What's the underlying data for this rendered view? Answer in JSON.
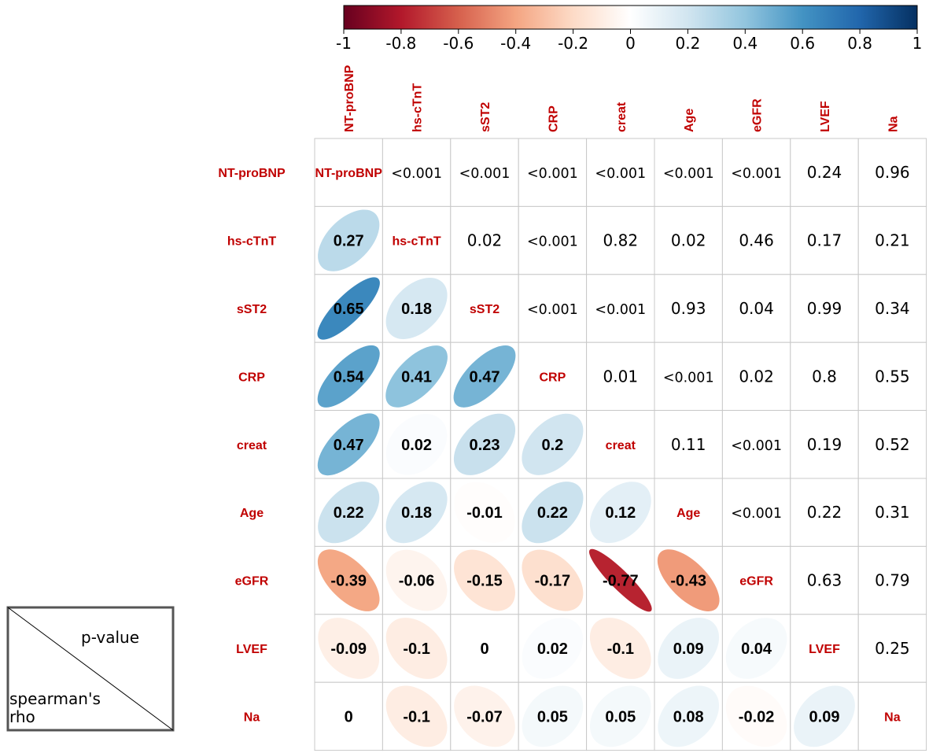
{
  "chart_data": {
    "type": "heatmap",
    "variables": [
      "NT-proBNP",
      "hs-cTnT",
      "sST2",
      "CRP",
      "creat",
      "Age",
      "eGFR",
      "LVEF",
      "Na"
    ],
    "upper_triangle_label": "p-value",
    "lower_triangle_label": "spearman's rho",
    "spearman_rho": [
      [
        null,
        null,
        null,
        null,
        null,
        null,
        null,
        null,
        null
      ],
      [
        0.27,
        null,
        null,
        null,
        null,
        null,
        null,
        null,
        null
      ],
      [
        0.65,
        0.18,
        null,
        null,
        null,
        null,
        null,
        null,
        null
      ],
      [
        0.54,
        0.41,
        0.47,
        null,
        null,
        null,
        null,
        null,
        null
      ],
      [
        0.47,
        0.02,
        0.23,
        0.2,
        null,
        null,
        null,
        null,
        null
      ],
      [
        0.22,
        0.18,
        -0.01,
        0.22,
        0.12,
        null,
        null,
        null,
        null
      ],
      [
        -0.39,
        -0.06,
        -0.15,
        -0.17,
        -0.77,
        -0.43,
        null,
        null,
        null
      ],
      [
        -0.09,
        -0.1,
        0,
        0.02,
        -0.1,
        0.09,
        0.04,
        null,
        null
      ],
      [
        0,
        -0.1,
        -0.07,
        0.05,
        0.05,
        0.08,
        -0.02,
        0.09,
        null
      ]
    ],
    "p_values": [
      [
        null,
        "<0.001",
        "<0.001",
        "<0.001",
        "<0.001",
        "<0.001",
        "<0.001",
        "0.24",
        "0.96"
      ],
      [
        null,
        null,
        "0.02",
        "<0.001",
        "0.82",
        "0.02",
        "0.46",
        "0.17",
        "0.21"
      ],
      [
        null,
        null,
        null,
        "<0.001",
        "<0.001",
        "0.93",
        "0.04",
        "0.99",
        "0.34"
      ],
      [
        null,
        null,
        null,
        null,
        "0.01",
        "<0.001",
        "0.02",
        "0.8",
        "0.55"
      ],
      [
        null,
        null,
        null,
        null,
        null,
        "0.11",
        "<0.001",
        "0.19",
        "0.52"
      ],
      [
        null,
        null,
        null,
        null,
        null,
        null,
        "<0.001",
        "0.22",
        "0.31"
      ],
      [
        null,
        null,
        null,
        null,
        null,
        null,
        null,
        "0.63",
        "0.79"
      ],
      [
        null,
        null,
        null,
        null,
        null,
        null,
        null,
        null,
        "0.25"
      ],
      [
        null,
        null,
        null,
        null,
        null,
        null,
        null,
        null,
        null
      ]
    ],
    "colorbar": {
      "range": [
        -1,
        1
      ],
      "ticks": [
        "-1",
        "-0.8",
        "-0.6",
        "-0.4",
        "-0.2",
        "0",
        "0.2",
        "0.4",
        "0.6",
        "0.8",
        "1"
      ],
      "low_color": "#67001f",
      "mid_color": "#ffffff",
      "high_color": "#053061"
    },
    "label_color": "#c00000",
    "grid": true
  },
  "legend": {
    "upper_text": "p-value",
    "lower_text_line1": "spearman's",
    "lower_text_line2": "rho"
  }
}
